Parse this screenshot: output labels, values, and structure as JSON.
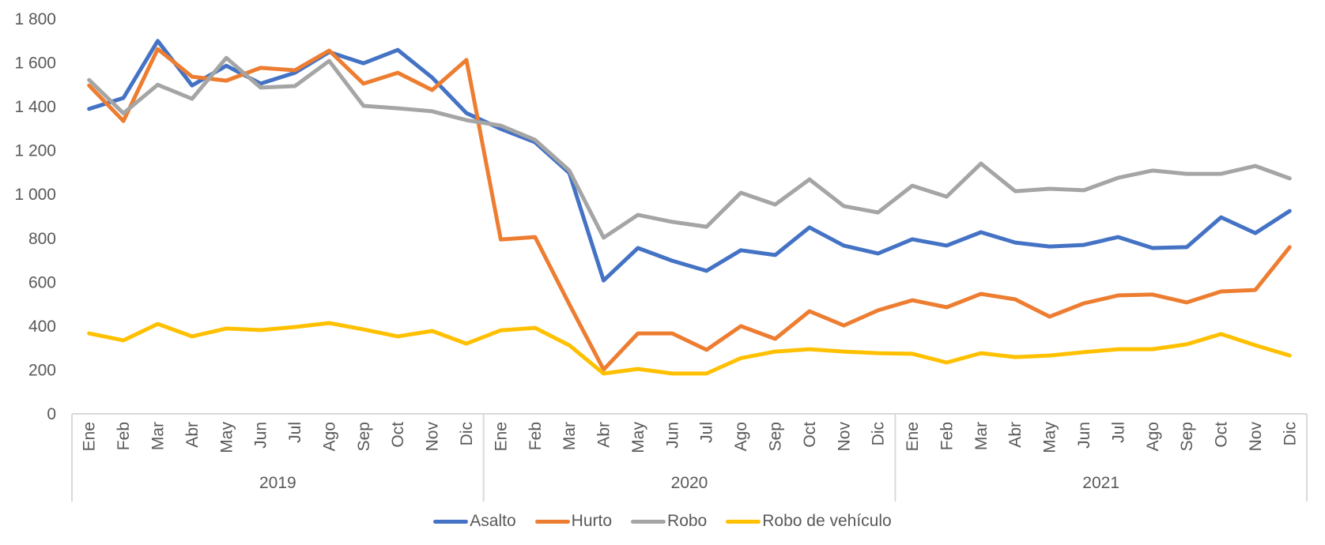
{
  "chart_data": {
    "type": "line",
    "title": "",
    "xlabel": "",
    "ylabel": "",
    "ylim": [
      0,
      1800
    ],
    "yticks": [
      0,
      200,
      400,
      600,
      800,
      1000,
      1200,
      1400,
      1600,
      1800
    ],
    "ytick_labels": [
      "0",
      "200",
      "400",
      "600",
      "800",
      "1 000",
      "1 200",
      "1 400",
      "1 600",
      "1 800"
    ],
    "grid": false,
    "legend_position": "bottom",
    "years": [
      "2019",
      "2020",
      "2021"
    ],
    "months": [
      "Ene",
      "Feb",
      "Mar",
      "Abr",
      "May",
      "Jun",
      "Jul",
      "Ago",
      "Sep",
      "Oct",
      "Nov",
      "Dic"
    ],
    "series": [
      {
        "name": "Asalto",
        "color": "#4472C4",
        "values": [
          1390,
          1440,
          1700,
          1497,
          1587,
          1505,
          1555,
          1649,
          1598,
          1659,
          1533,
          1371,
          1299,
          1238,
          1098,
          608,
          756,
          698,
          652,
          746,
          724,
          850,
          767,
          731,
          796,
          767,
          828,
          781,
          763,
          770,
          806,
          756,
          760,
          896,
          824,
          925
        ]
      },
      {
        "name": "Hurto",
        "color": "#ED7D31",
        "values": [
          1497,
          1335,
          1663,
          1537,
          1519,
          1577,
          1566,
          1656,
          1505,
          1555,
          1476,
          1613,
          795,
          806,
          500,
          202,
          367,
          367,
          292,
          400,
          342,
          468,
          403,
          472,
          518,
          486,
          547,
          522,
          443,
          504,
          540,
          544,
          508,
          558,
          565,
          760
        ]
      },
      {
        "name": "Robo",
        "color": "#A5A5A5",
        "values": [
          1522,
          1370,
          1500,
          1436,
          1623,
          1487,
          1494,
          1609,
          1404,
          1393,
          1379,
          1339,
          1314,
          1249,
          1109,
          803,
          907,
          875,
          853,
          1008,
          954,
          1069,
          947,
          918,
          1040,
          990,
          1141,
          1015,
          1026,
          1019,
          1076,
          1109,
          1094,
          1094,
          1130,
          1073
        ]
      },
      {
        "name": "Robo de vehículo",
        "color": "#FFC000",
        "values": [
          367,
          335,
          410,
          353,
          389,
          382,
          396,
          414,
          385,
          353,
          378,
          320,
          381,
          392,
          313,
          184,
          205,
          184,
          184,
          254,
          284,
          295,
          284,
          277,
          274,
          234,
          277,
          259,
          266,
          281,
          295,
          295,
          317,
          364,
          313,
          266
        ]
      }
    ]
  }
}
